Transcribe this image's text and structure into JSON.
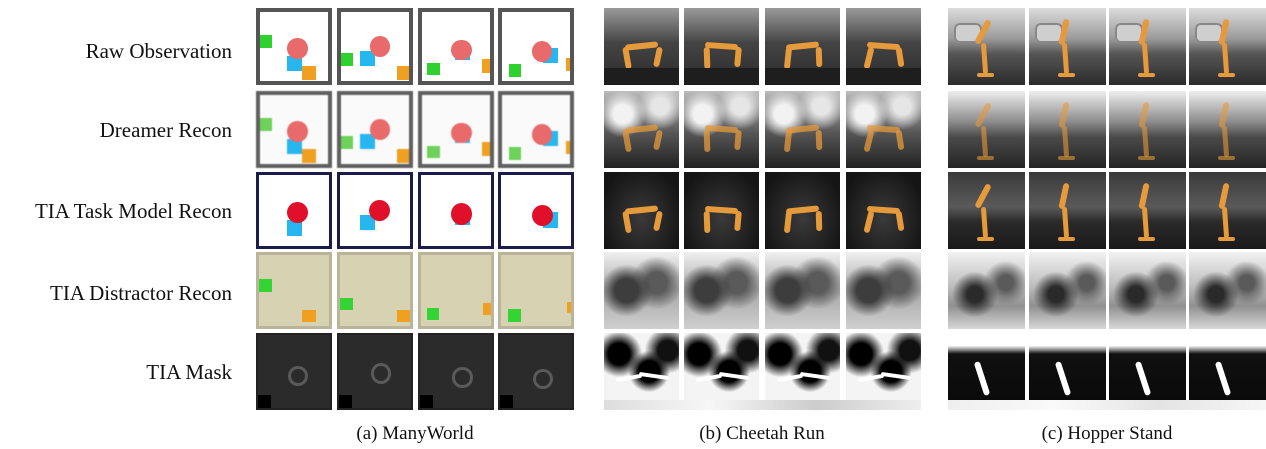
{
  "rows": [
    "Raw Observation",
    "Dreamer Recon",
    "TIA Task Model Recon",
    "TIA Distractor Recon",
    "TIA Mask"
  ],
  "captions": [
    "(a) ManyWorld",
    "(b) Cheetah Run",
    "(c) Hopper Stand"
  ]
}
